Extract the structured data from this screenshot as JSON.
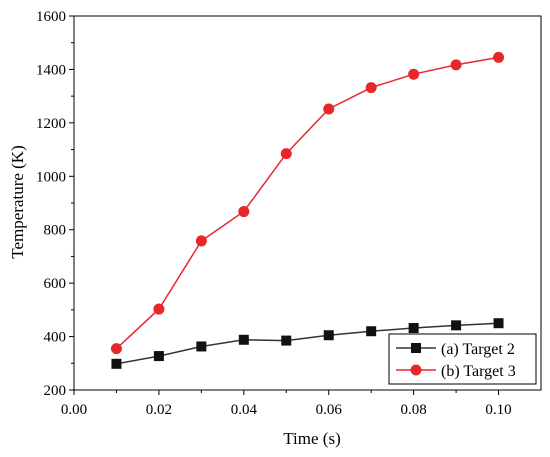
{
  "chart_data": {
    "type": "line",
    "xlabel": "Time (s)",
    "ylabel": "Temperature (K)",
    "xlim": [
      0.0,
      0.11
    ],
    "ylim": [
      200,
      1600
    ],
    "x_ticks": [
      "0.00",
      "0.02",
      "0.04",
      "0.06",
      "0.08",
      "0.10"
    ],
    "y_ticks": [
      "200",
      "400",
      "600",
      "800",
      "1000",
      "1200",
      "1400",
      "1600"
    ],
    "x_tick_values": [
      0.0,
      0.02,
      0.04,
      0.06,
      0.08,
      0.1
    ],
    "y_tick_values": [
      200,
      400,
      600,
      800,
      1000,
      1200,
      1400,
      1600
    ],
    "grid": false,
    "legend_position": "bottom-right",
    "x": [
      0.01,
      0.02,
      0.03,
      0.04,
      0.05,
      0.06,
      0.07,
      0.08,
      0.09,
      0.1
    ],
    "series": [
      {
        "name": "(a) Target 2",
        "color": "#333333",
        "marker": "square",
        "values": [
          298,
          327,
          363,
          388,
          385,
          405,
          420,
          432,
          442,
          450
        ]
      },
      {
        "name": "(b) Target 3",
        "color": "#e8272b",
        "marker": "circle",
        "values": [
          355,
          503,
          758,
          868,
          1085,
          1252,
          1332,
          1382,
          1417,
          1445
        ]
      }
    ]
  }
}
